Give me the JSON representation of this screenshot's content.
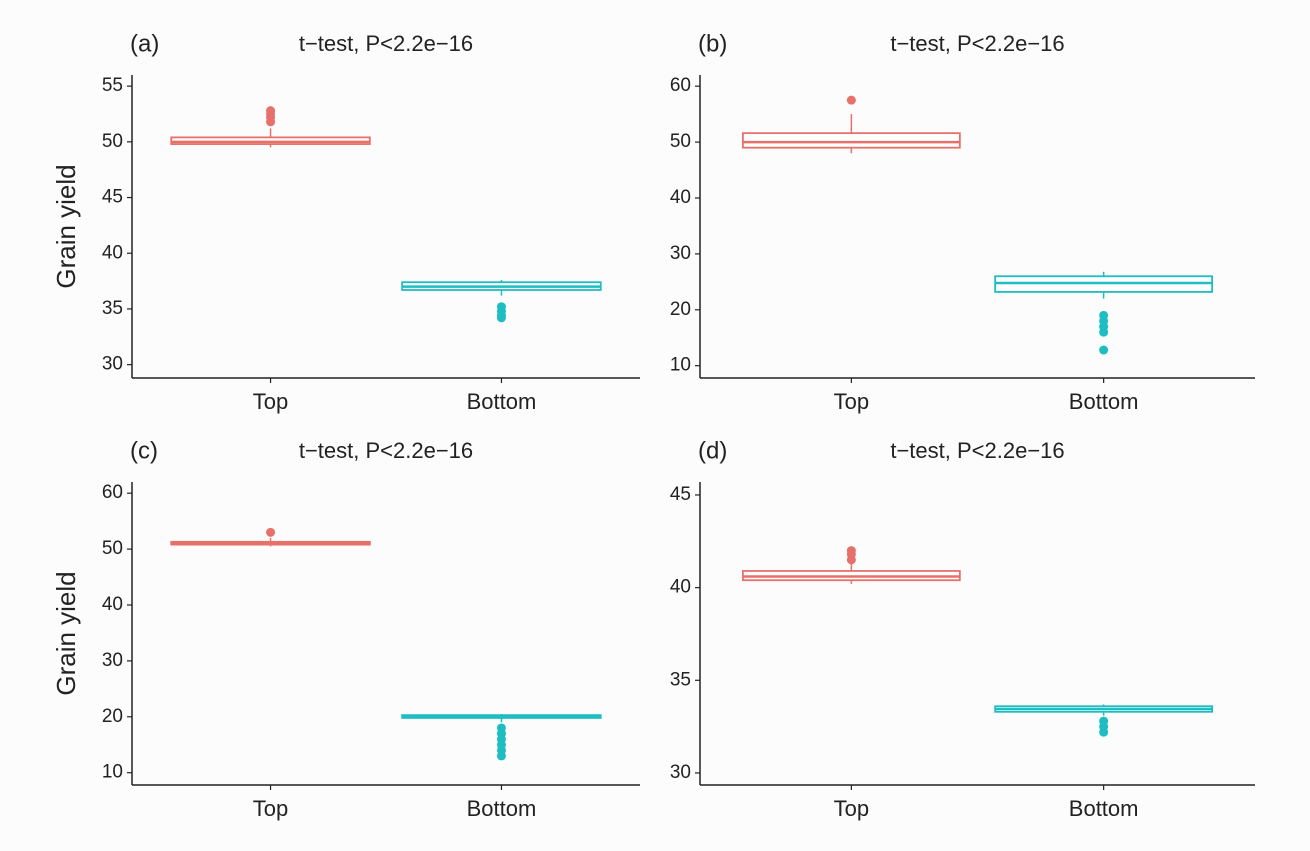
{
  "chart_data": [
    {
      "type": "box",
      "panel_label": "(a)",
      "title": "t−test, P<2.2e−16",
      "y_label": "Grain yield",
      "categories": [
        "Top",
        "Bottom"
      ],
      "boxes": [
        {
          "color": "#e8706a",
          "min": 49.5,
          "q1": 49.8,
          "median": 50,
          "q3": 50.4,
          "max": 51.2,
          "outliers": [
            51.8,
            52.2,
            52.5,
            52.8
          ]
        },
        {
          "color": "#1ebdc2",
          "min": 36.2,
          "q1": 36.7,
          "median": 37,
          "q3": 37.4,
          "max": 37.6,
          "outliers": [
            35.2,
            34.8,
            34.4,
            34.2
          ]
        }
      ],
      "ylim": [
        28.8,
        56
      ],
      "yticks": [
        30,
        35,
        40,
        45,
        50,
        55
      ]
    },
    {
      "type": "box",
      "panel_label": "(b)",
      "title": "t−test, P<2.2e−16",
      "categories": [
        "Top",
        "Bottom"
      ],
      "boxes": [
        {
          "color": "#e8706a",
          "min": 48,
          "q1": 49,
          "median": 50,
          "q3": 51.6,
          "max": 55,
          "outliers": [
            57.5
          ]
        },
        {
          "color": "#1ebdc2",
          "min": 22,
          "q1": 23.2,
          "median": 24.8,
          "q3": 26,
          "max": 26.8,
          "outliers": [
            19,
            18,
            17,
            16,
            12.8
          ]
        }
      ],
      "ylim": [
        7.8,
        62
      ],
      "yticks": [
        10,
        20,
        30,
        40,
        50,
        60
      ]
    },
    {
      "type": "box",
      "panel_label": "(c)",
      "title": "t−test, P<2.2e−16",
      "y_label": "Grain yield",
      "categories": [
        "Top",
        "Bottom"
      ],
      "boxes": [
        {
          "color": "#e8706a",
          "min": 50.5,
          "q1": 50.8,
          "median": 51,
          "q3": 51.3,
          "max": 52,
          "outliers": [
            53
          ]
        },
        {
          "color": "#1ebdc2",
          "min": 19,
          "q1": 19.8,
          "median": 20,
          "q3": 20.3,
          "max": 20.5,
          "outliers": [
            18,
            17,
            16,
            15,
            14,
            13
          ]
        }
      ],
      "ylim": [
        7.8,
        62
      ],
      "yticks": [
        10,
        20,
        30,
        40,
        50,
        60
      ]
    },
    {
      "type": "box",
      "panel_label": "(d)",
      "title": "t−test, P<2.2e−16",
      "categories": [
        "Top",
        "Bottom"
      ],
      "boxes": [
        {
          "color": "#e8706a",
          "min": 40.2,
          "q1": 40.4,
          "median": 40.6,
          "q3": 40.9,
          "max": 41.3,
          "outliers": [
            41.5,
            41.8,
            42
          ]
        },
        {
          "color": "#1ebdc2",
          "min": 33.1,
          "q1": 33.3,
          "median": 33.45,
          "q3": 33.6,
          "max": 33.7,
          "outliers": [
            32.8,
            32.5,
            32.2
          ]
        }
      ],
      "ylim": [
        29.35,
        45.7
      ],
      "yticks": [
        30,
        35,
        40,
        45
      ]
    }
  ]
}
